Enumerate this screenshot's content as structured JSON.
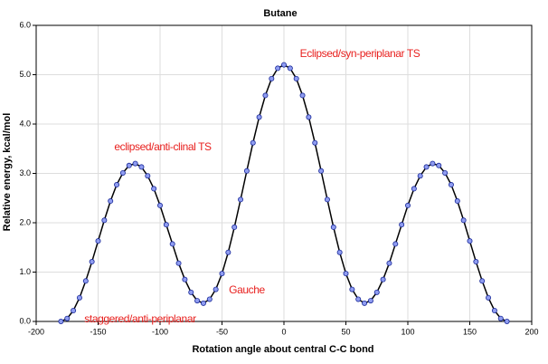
{
  "chart_data": {
    "type": "line",
    "title": "Butane",
    "x_label": "Rotation angle about central C-C bond",
    "y_label": "Relative energy, kcal/mol",
    "x": [
      -180,
      -175,
      -170,
      -165,
      -160,
      -155,
      -150,
      -145,
      -140,
      -135,
      -130,
      -125,
      -120,
      -115,
      -110,
      -105,
      -100,
      -95,
      -90,
      -85,
      -80,
      -75,
      -70,
      -65,
      -60,
      -55,
      -50,
      -45,
      -40,
      -35,
      -30,
      -25,
      -20,
      -15,
      -10,
      -5,
      0,
      5,
      10,
      15,
      20,
      25,
      30,
      35,
      40,
      45,
      50,
      55,
      60,
      65,
      70,
      75,
      80,
      85,
      90,
      95,
      100,
      105,
      110,
      115,
      120,
      125,
      130,
      135,
      140,
      145,
      150,
      155,
      160,
      165,
      170,
      175,
      180
    ],
    "series": [
      {
        "name": "Butane",
        "color": "#000000",
        "marker_color": "#8f9cf0",
        "values": [
          0,
          0.06,
          0.22,
          0.48,
          0.82,
          1.21,
          1.63,
          2.05,
          2.44,
          2.77,
          3.01,
          3.16,
          3.2,
          3.13,
          2.95,
          2.69,
          2.35,
          1.96,
          1.57,
          1.18,
          0.85,
          0.59,
          0.42,
          0.37,
          0.45,
          0.65,
          0.97,
          1.4,
          1.91,
          2.47,
          3.05,
          3.62,
          4.14,
          4.58,
          4.92,
          5.13,
          5.2,
          5.13,
          4.92,
          4.58,
          4.14,
          3.62,
          3.05,
          2.47,
          1.91,
          1.4,
          0.97,
          0.65,
          0.45,
          0.37,
          0.42,
          0.59,
          0.85,
          1.18,
          1.57,
          1.96,
          2.35,
          2.69,
          2.95,
          3.13,
          3.2,
          3.16,
          3.01,
          2.77,
          2.44,
          2.05,
          1.63,
          1.21,
          0.82,
          0.48,
          0.22,
          0.06,
          0
        ]
      }
    ],
    "xlim": [
      -200,
      200
    ],
    "xticks": [
      -200,
      -150,
      -100,
      -50,
      0,
      50,
      100,
      150,
      200
    ],
    "ylim": [
      0,
      6
    ],
    "yticks": [
      {
        "value": 0,
        "label": "0.0"
      },
      {
        "value": 1,
        "label": "1.0"
      },
      {
        "value": 2,
        "label": "2.0"
      },
      {
        "value": 3,
        "label": "3.0"
      },
      {
        "value": 4,
        "label": "4.0"
      },
      {
        "value": 5,
        "label": "5.0"
      },
      {
        "value": 6,
        "label": "6.0"
      }
    ],
    "grid": true,
    "annotations": [
      "Eclipsed/syn-periplanar TS",
      "eclipsed/anti-clinal TS",
      "Gauche",
      "staggered/anti-periplanar"
    ]
  }
}
